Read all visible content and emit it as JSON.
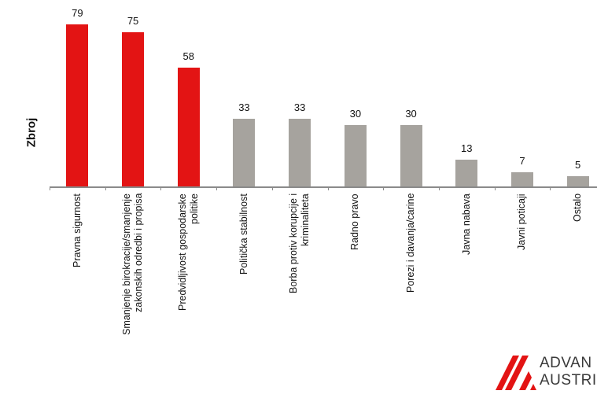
{
  "chart_data": {
    "type": "bar",
    "title": "",
    "xlabel": "",
    "ylabel": "Zbroj",
    "ylim": [
      0,
      85
    ],
    "grid": false,
    "legend": null,
    "categories": [
      "Pravna sigurnost",
      "Smanjenje birokracije/smanjenje zakonskih odredbi i propisa",
      "Predvidljivost gospodarske politike",
      "Politička stabilnost",
      "Borba protiv korupcije i kriminaliteta",
      "Radno pravo",
      "Porezi i davanja/carine",
      "Javna nabava",
      "Javni poticaji",
      "Ostalo"
    ],
    "category_lines": [
      "Pravna sigurnost",
      "Smanjenje birokracije/smanjenje\nzakonskih odredbi i propisa",
      "Predvidljivost  gospodarske\npolitike",
      "Politička stabilnost",
      "Borba protiv korupcije i\nkriminaliteta",
      "Radno pravo",
      "Porezi i davanja/carine",
      "Javna nabava",
      "Javni poticaji",
      "Ostalo"
    ],
    "values": [
      79,
      75,
      58,
      33,
      33,
      30,
      30,
      13,
      7,
      5
    ],
    "value_labels": [
      "79",
      "75",
      "58",
      "33",
      "33",
      "30",
      "30",
      "13",
      "7",
      "5"
    ],
    "colors": [
      "#e31414",
      "#e31414",
      "#e31414",
      "#a6a39e",
      "#a6a39e",
      "#a6a39e",
      "#a6a39e",
      "#a6a39e",
      "#a6a39e",
      "#a6a39e"
    ]
  },
  "colors": {
    "highlight": "#e31414",
    "neutral": "#a6a39e",
    "axis": "#8a8a8a"
  },
  "logo": {
    "line1": "ADVAN",
    "line2": "AUSTRI"
  }
}
